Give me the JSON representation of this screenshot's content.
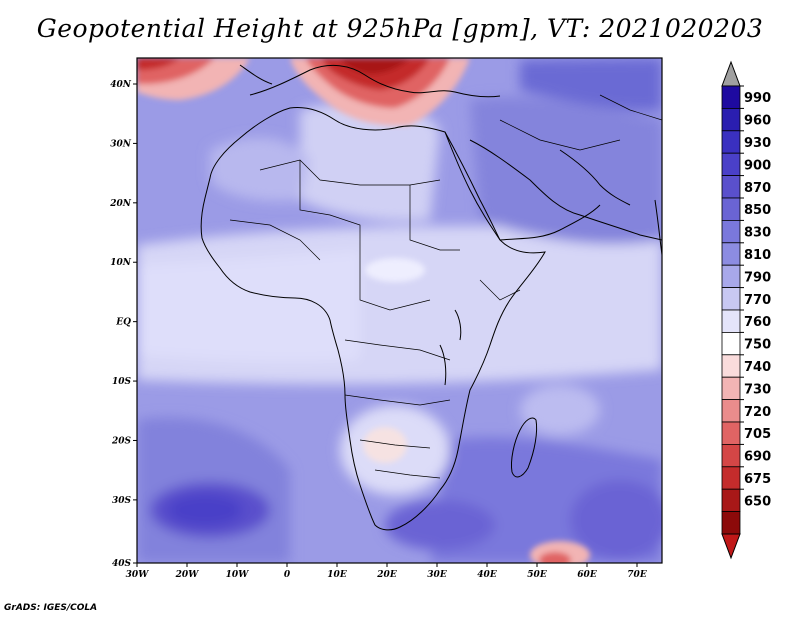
{
  "title": "Geopotential Height at 925hPa [gpm], VT: 2021020203",
  "credit": "GrADS: IGES/COLA",
  "map": {
    "lon_range": [
      -30,
      75
    ],
    "lat_range": [
      -40,
      45
    ],
    "x_ticks": [
      "30W",
      "20W",
      "10W",
      "0",
      "10E",
      "20E",
      "30E",
      "40E",
      "50E",
      "60E",
      "70E"
    ],
    "y_ticks": [
      "40N",
      "30N",
      "20N",
      "10N",
      "EQ",
      "10S",
      "20S",
      "30S",
      "40S"
    ]
  },
  "colorbar": {
    "levels": [
      "990",
      "960",
      "930",
      "900",
      "870",
      "850",
      "830",
      "810",
      "790",
      "770",
      "760",
      "750",
      "740",
      "730",
      "720",
      "705",
      "690",
      "675",
      "650"
    ],
    "colors": [
      "#1e0aa0",
      "#2a1eb0",
      "#3a30c0",
      "#4a40c8",
      "#5a50cc",
      "#6a64d4",
      "#7a78dc",
      "#8c8ce2",
      "#a8a8ea",
      "#c8c8f2",
      "#e4e4fa",
      "#ffffff",
      "#fadcdc",
      "#f2b4b4",
      "#ea8c8c",
      "#e06464",
      "#d44646",
      "#c42c2c",
      "#a81818",
      "#8c0a0a"
    ],
    "top_arrow_color": "#a0a0a0",
    "bottom_arrow_color": "#c01818"
  }
}
